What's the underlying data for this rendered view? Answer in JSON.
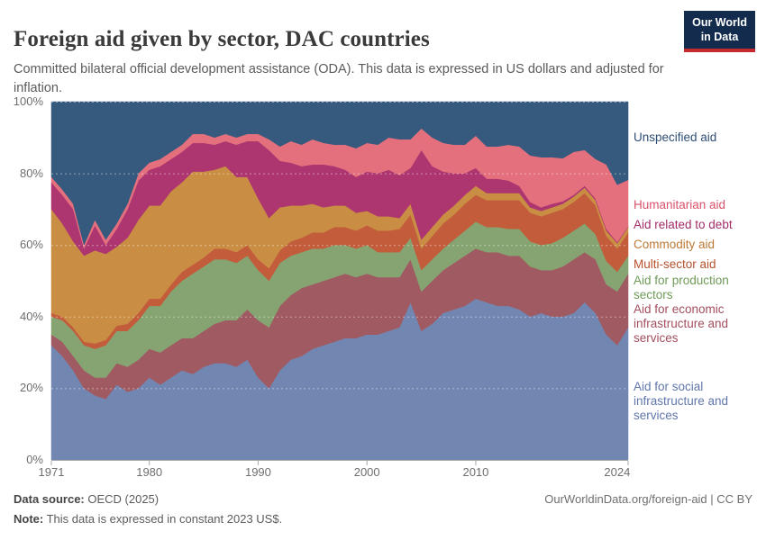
{
  "header": {
    "title": "Foreign aid given by sector, DAC countries",
    "logo": {
      "line1": "Our World",
      "line2": "in Data",
      "bg_color": "#132c4e",
      "bar_color": "#c5292f"
    }
  },
  "subtitle": "Committed bilateral official development assistance (ODA). This data is expressed in US dollars and adjusted for inflation.",
  "chart_data": {
    "type": "area",
    "stacking": "percent",
    "unit": "%",
    "grid": "dashed-horizontal",
    "legend_position": "right",
    "x": [
      1971,
      1972,
      1973,
      1974,
      1975,
      1976,
      1977,
      1978,
      1979,
      1980,
      1981,
      1982,
      1983,
      1984,
      1985,
      1986,
      1987,
      1988,
      1989,
      1990,
      1991,
      1992,
      1993,
      1994,
      1995,
      1996,
      1997,
      1998,
      1999,
      2000,
      2001,
      2002,
      2003,
      2004,
      2005,
      2006,
      2007,
      2008,
      2009,
      2010,
      2011,
      2012,
      2013,
      2014,
      2015,
      2016,
      2017,
      2018,
      2019,
      2020,
      2021,
      2022,
      2023,
      2024
    ],
    "x_axis": {
      "ticks": [
        1971,
        1980,
        1990,
        2000,
        2010,
        2024
      ],
      "labels": [
        "1971",
        "1980",
        "1990",
        "2000",
        "2010",
        "2024"
      ]
    },
    "y_axis": {
      "min": 0,
      "max": 100,
      "ticks": [
        0,
        20,
        40,
        60,
        80,
        100
      ],
      "labels": [
        "0%",
        "20%",
        "40%",
        "60%",
        "80%",
        "100%"
      ]
    },
    "series": [
      {
        "name": "Aid for social infrastructure and services",
        "color": "#7286b2",
        "label_color": "#6076ab",
        "values": [
          32,
          29,
          25,
          20,
          18,
          17,
          21,
          19,
          20,
          23,
          21,
          23,
          25,
          24,
          26,
          27,
          27,
          26,
          28,
          23,
          20,
          25,
          28,
          29,
          31,
          32,
          33,
          34,
          34,
          35,
          35,
          36,
          37,
          44,
          36,
          38,
          41,
          42,
          43,
          45,
          44,
          43,
          43,
          42,
          40,
          41,
          40,
          40,
          41,
          44,
          41,
          35,
          32,
          37
        ]
      },
      {
        "name": "Aid for economic infrastructure and services",
        "color": "#9f5a62",
        "label_color": "#a34e5e",
        "values": [
          3,
          4,
          4,
          5,
          5,
          6,
          6,
          7,
          8,
          8,
          9,
          9,
          9,
          10,
          10,
          11,
          12,
          13,
          14,
          16,
          17,
          18,
          18,
          19,
          18,
          18,
          18,
          18,
          17,
          17,
          16,
          15,
          14,
          12,
          11,
          12,
          12,
          13,
          14,
          14,
          14,
          15,
          14,
          15,
          14,
          12,
          13,
          14,
          15,
          14,
          15,
          14,
          15,
          15
        ]
      },
      {
        "name": "Aid for production sectors",
        "color": "#85a471",
        "label_color": "#6f9b58",
        "values": [
          5,
          6,
          7,
          7,
          8,
          9,
          9,
          10,
          11,
          12,
          13,
          15,
          16,
          18,
          18,
          18,
          17,
          16,
          15,
          14,
          13,
          12,
          11,
          10,
          10,
          9,
          9,
          8,
          8,
          8,
          7,
          7,
          7,
          6,
          6,
          6,
          6,
          6.5,
          7,
          7.5,
          7,
          7,
          7.5,
          7.5,
          7,
          7,
          7.5,
          8,
          8,
          8,
          7,
          6.5,
          5.5,
          5
        ]
      },
      {
        "name": "Multi-sector aid",
        "color": "#c25c3b",
        "label_color": "#b5512c",
        "values": [
          1,
          1,
          1,
          1,
          1.5,
          1.5,
          1.5,
          2,
          2,
          2,
          2,
          2,
          2.5,
          2.5,
          2.5,
          3,
          3,
          3,
          3,
          3,
          3.5,
          3.5,
          4,
          4,
          4.5,
          4.5,
          5,
          5,
          5,
          5.5,
          6,
          6,
          6.5,
          6.5,
          6,
          6.5,
          7,
          7,
          7.5,
          7.5,
          7.5,
          7.5,
          8,
          8,
          8,
          8,
          8.5,
          8,
          8,
          8.5,
          8,
          7,
          6.5,
          6.5
        ]
      },
      {
        "name": "Commodity aid",
        "color": "#c98d43",
        "label_color": "#bd7935",
        "values": [
          29,
          26,
          24,
          24,
          26,
          24,
          22,
          24,
          26,
          26,
          26,
          26,
          25,
          26,
          24,
          22,
          23,
          21,
          19,
          17,
          14,
          12,
          10,
          9,
          8,
          7,
          6,
          6,
          5,
          4,
          4,
          4,
          3,
          3,
          2.5,
          2.5,
          2.5,
          2.5,
          2.5,
          2.5,
          2,
          2,
          2,
          2,
          1.5,
          1.5,
          1.5,
          1.5,
          1.5,
          1.5,
          1.5,
          1.5,
          1.5,
          1.5
        ]
      },
      {
        "name": "Aid related to debt",
        "color": "#ad3570",
        "label_color": "#a12c68",
        "values": [
          7.5,
          8,
          9,
          2,
          7,
          2.5,
          5,
          8,
          11,
          10,
          11,
          9,
          8.5,
          8,
          8,
          7,
          7,
          9,
          10,
          16,
          19,
          13,
          12,
          11,
          11,
          12,
          11,
          10,
          10,
          11,
          12,
          13,
          12,
          10,
          25,
          17,
          12,
          9,
          6,
          5,
          4,
          4,
          3.5,
          2,
          1.5,
          1,
          1,
          0.7,
          0.5,
          0.5,
          0.5,
          0.5,
          0.3,
          0.2
        ]
      },
      {
        "name": "Humanitarian aid",
        "color": "#e5707d",
        "label_color": "#d9536b",
        "values": [
          1.5,
          1.5,
          1.5,
          1,
          1.5,
          1.5,
          1.5,
          1.5,
          2,
          2,
          2,
          2,
          2,
          2.5,
          2.5,
          2,
          2,
          2,
          2,
          2,
          3,
          4,
          6,
          6,
          7,
          6,
          6,
          7,
          8,
          8,
          8,
          9,
          10,
          8,
          6,
          8,
          8,
          8,
          8,
          9,
          9,
          9,
          10,
          11,
          13,
          14,
          13,
          12,
          12,
          10,
          11,
          18,
          16,
          13
        ]
      },
      {
        "name": "Unspecified aid",
        "color": "#36597e",
        "label_color": "#2e4e76",
        "values": [
          21,
          24.5,
          28.5,
          40,
          33,
          38.5,
          34,
          28.5,
          20,
          17,
          16,
          14,
          12,
          9,
          9,
          10,
          9,
          10,
          9,
          9,
          10.5,
          12.5,
          11,
          12,
          10.5,
          11.5,
          12,
          12,
          13,
          11.5,
          12,
          10,
          10.5,
          10.5,
          7.5,
          10,
          11.5,
          12,
          12,
          9.5,
          12.5,
          12.5,
          12,
          12.5,
          15,
          15.5,
          15.5,
          15.8,
          14,
          13.5,
          16,
          17.5,
          23.2,
          21.8
        ]
      }
    ]
  },
  "legend": {
    "items": [
      {
        "label": "Unspecified aid",
        "color": "#2e4e76"
      },
      {
        "label": "Humanitarian aid",
        "color": "#d9536b"
      },
      {
        "label": "Aid related to debt",
        "color": "#a12c68"
      },
      {
        "label": "Commodity aid",
        "color": "#bd7935"
      },
      {
        "label": "Multi-sector aid",
        "color": "#b5512c"
      },
      {
        "label": "Aid for production sectors",
        "color": "#6f9b58"
      },
      {
        "label": "Aid for economic infrastructure and services",
        "color": "#a34e5e"
      },
      {
        "label": "Aid for social infrastructure and services",
        "color": "#6076ab"
      }
    ]
  },
  "footer": {
    "source_label": "Data source:",
    "source_value": " OECD (2025)",
    "note_label": "Note:",
    "note_value": " This data is expressed in constant 2023 US$.",
    "link": "OurWorldinData.org/foreign-aid | CC BY"
  }
}
